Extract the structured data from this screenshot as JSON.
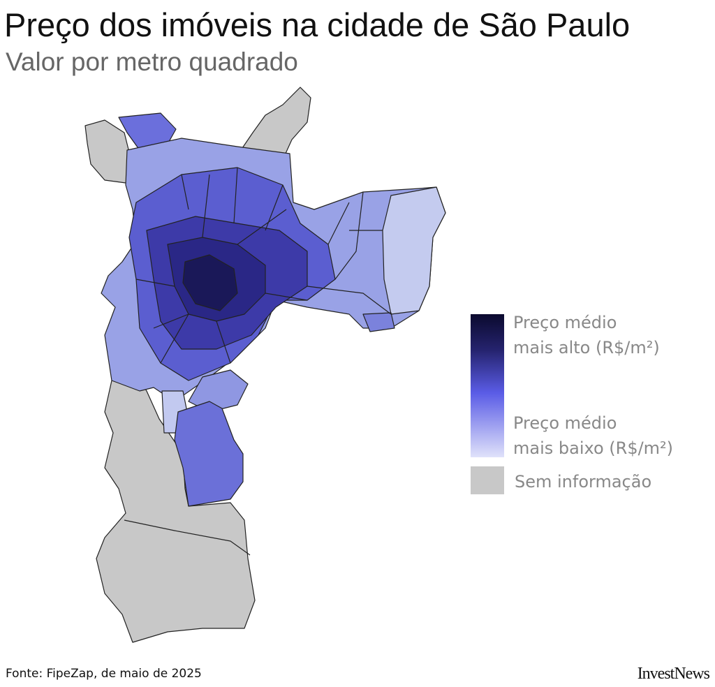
{
  "header": {
    "title": "Preço dos imóveis na cidade de São Paulo",
    "subtitle": "Valor por metro quadrado"
  },
  "legend": {
    "high": [
      "Preço médio",
      "mais alto (R$/m²)"
    ],
    "low": [
      "Preço médio",
      "mais baixo (R$/m²)"
    ],
    "no_data": "Sem informação"
  },
  "footer": {
    "source": "Fonte: FipeZap, de maio de 2025",
    "logo": "InvestNews"
  }
}
